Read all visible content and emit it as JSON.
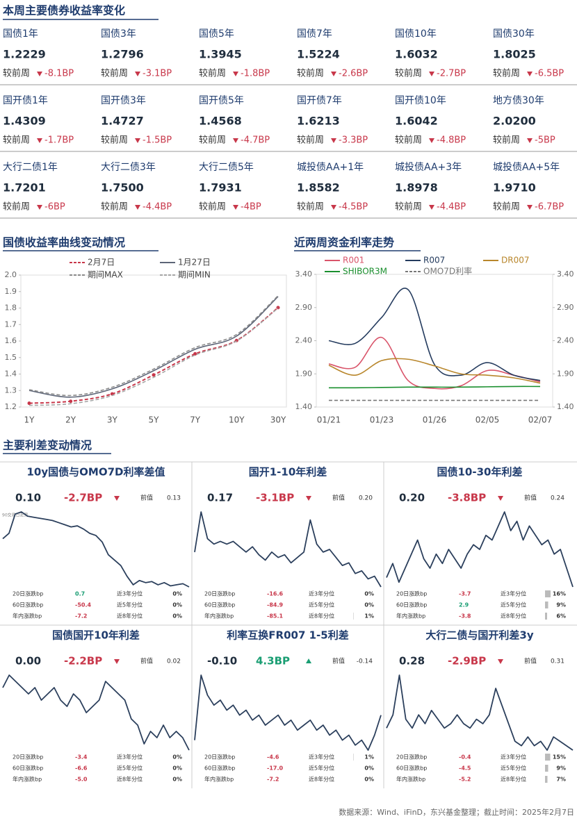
{
  "title": "本周主要债券收益率变化",
  "compare_label": "较前周",
  "bonds": [
    [
      {
        "name": "国债1年",
        "value": "1.2229",
        "change": "-8.1BP"
      },
      {
        "name": "国债3年",
        "value": "1.2796",
        "change": "-3.1BP"
      },
      {
        "name": "国债5年",
        "value": "1.3945",
        "change": "-1.8BP"
      },
      {
        "name": "国债7年",
        "value": "1.5224",
        "change": "-2.6BP"
      },
      {
        "name": "国债10年",
        "value": "1.6032",
        "change": "-2.7BP"
      },
      {
        "name": "国债30年",
        "value": "1.8025",
        "change": "-6.5BP"
      }
    ],
    [
      {
        "name": "国开债1年",
        "value": "1.4309",
        "change": "-1.7BP"
      },
      {
        "name": "国开债3年",
        "value": "1.4727",
        "change": "-1.5BP"
      },
      {
        "name": "国开债5年",
        "value": "1.4568",
        "change": "-4.7BP"
      },
      {
        "name": "国开债7年",
        "value": "1.6213",
        "change": "-3.3BP"
      },
      {
        "name": "国开债10年",
        "value": "1.6042",
        "change": "-4.8BP"
      },
      {
        "name": "地方债30年",
        "value": "2.0200",
        "change": "-5BP"
      }
    ],
    [
      {
        "name": "大行二债1年",
        "value": "1.7201",
        "change": "-6BP"
      },
      {
        "name": "大行二债3年",
        "value": "1.7500",
        "change": "-4.4BP"
      },
      {
        "name": "大行二债5年",
        "value": "1.7931",
        "change": "-4BP"
      },
      {
        "name": "城投债AA+1年",
        "value": "1.8582",
        "change": "-4.5BP"
      },
      {
        "name": "城投债AA+3年",
        "value": "1.8978",
        "change": "-4.4BP"
      },
      {
        "name": "城投债AA+5年",
        "value": "1.9710",
        "change": "-6.7BP"
      }
    ]
  ],
  "section_spread": "主要利差变动情况",
  "footer": "数据来源：Wind、iFinD，东兴基金整理；截止时间：2025年2月7日",
  "chart_data": [
    {
      "type": "line",
      "title": "国债收益率曲线变动情况",
      "categories": [
        "1Y",
        "2Y",
        "3Y",
        "5Y",
        "7Y",
        "10Y",
        "30Y"
      ],
      "series": [
        {
          "name": "2月7日",
          "color": "#c8374a",
          "dash": true,
          "markers": true,
          "values": [
            1.2229,
            1.235,
            1.2796,
            1.3945,
            1.5224,
            1.6032,
            1.8025
          ]
        },
        {
          "name": "1月27日",
          "color": "#5d6577",
          "dash": false,
          "markers": false,
          "values": [
            1.3,
            1.26,
            1.31,
            1.42,
            1.55,
            1.63,
            1.87
          ]
        },
        {
          "name": "期间MAX",
          "color": "#8a8a8a",
          "dash": true,
          "markers": false,
          "values": [
            1.305,
            1.27,
            1.32,
            1.43,
            1.56,
            1.64,
            1.875
          ]
        },
        {
          "name": "期间MIN",
          "color": "#a5a5a5",
          "dash": true,
          "markers": false,
          "values": [
            1.21,
            1.22,
            1.27,
            1.38,
            1.515,
            1.6,
            1.8
          ]
        }
      ],
      "ylim": [
        1.2,
        2.0
      ],
      "yticks": [
        1.2,
        1.3,
        1.4,
        1.5,
        1.6,
        1.7,
        1.8,
        1.9,
        {
          "value": 2,
          "label": "2.0"
        }
      ]
    },
    {
      "type": "line",
      "title": "近两周资金利率走势",
      "categories": [
        "01/21",
        null,
        "01/23",
        null,
        "01/26",
        null,
        "02/05",
        null,
        "02/07"
      ],
      "series": [
        {
          "name": "R001",
          "color": "#d9546a",
          "dash": false,
          "values": [
            2.05,
            2.0,
            2.45,
            1.8,
            1.68,
            1.72,
            1.95,
            1.88,
            1.78
          ]
        },
        {
          "name": "R007",
          "color": "#243b5e",
          "dash": false,
          "values": [
            2.4,
            2.36,
            2.75,
            3.17,
            2.04,
            1.88,
            2.07,
            1.88,
            1.8
          ]
        },
        {
          "name": "DR007",
          "color": "#b8862b",
          "dash": false,
          "values": [
            2.03,
            1.88,
            2.1,
            2.12,
            2.02,
            1.9,
            1.88,
            1.84,
            1.76
          ]
        },
        {
          "name": "SHIBOR3M",
          "color": "#1a8f2e",
          "dash": false,
          "values": [
            1.69,
            1.69,
            1.695,
            1.7,
            1.7,
            1.7,
            1.705,
            1.71,
            1.71
          ]
        },
        {
          "name": "OMO7D利率",
          "color": "#777777",
          "dash": true,
          "values": [
            1.5,
            1.5,
            1.5,
            1.5,
            1.5,
            1.5,
            1.5,
            1.5,
            1.5
          ]
        }
      ],
      "ylim": [
        1.4,
        3.4
      ],
      "yticks": [
        {
          "value": 1.4,
          "label": "1.40"
        },
        {
          "value": 1.9,
          "label": "1.90"
        },
        {
          "value": 2.4,
          "label": "2.40"
        },
        {
          "value": 2.9,
          "label": "2.90"
        },
        {
          "value": 3.4,
          "label": "3.40"
        }
      ],
      "y2lim": [
        1.4,
        3.4
      ],
      "y2ticks": [
        {
          "value": 1.4,
          "label": "1.40"
        },
        {
          "value": 1.9,
          "label": "1.90"
        },
        {
          "value": 2.4,
          "label": "2.40"
        },
        {
          "value": 2.9,
          "label": "2.90"
        },
        {
          "value": 3.4,
          "label": "3.40"
        }
      ]
    },
    {
      "type": "spark",
      "title": "10y国债与OMO7D利率差值",
      "note": "90交易日走势",
      "current": "0.10",
      "change": "-2.7BP",
      "arrow": "down",
      "prev_label": "前值",
      "prev": "0.13",
      "color": "#2b3f5c",
      "values": [
        0.55,
        0.6,
        0.78,
        0.8,
        0.76,
        0.75,
        0.74,
        0.73,
        0.72,
        0.7,
        0.68,
        0.66,
        0.67,
        0.64,
        0.6,
        0.58,
        0.52,
        0.4,
        0.35,
        0.3,
        0.2,
        0.12,
        0.16,
        0.14,
        0.15,
        0.12,
        0.14,
        0.11,
        0.12,
        0.13,
        0.1
      ],
      "stats": [
        {
          "label": "20日涨跌bp",
          "value": "0.7",
          "pct_label": "近3年分位",
          "pct": 0,
          "pct_text": "0%"
        },
        {
          "label": "60日涨跌bp",
          "value": "-50.4",
          "pct_label": "近5年分位",
          "pct": 0,
          "pct_text": "0%"
        },
        {
          "label": "年内涨跌bp",
          "value": "-7.2",
          "pct_label": "近8年分位",
          "pct": 0,
          "pct_text": "0%"
        }
      ]
    },
    {
      "type": "spark",
      "title": "国开1-10年利差",
      "current": "0.17",
      "change": "-3.1BP",
      "arrow": "down",
      "prev_label": "前值",
      "prev": "0.20",
      "color": "#2b3f5c",
      "values": [
        0.3,
        0.45,
        0.35,
        0.33,
        0.34,
        0.33,
        0.34,
        0.32,
        0.3,
        0.32,
        0.29,
        0.27,
        0.3,
        0.28,
        0.29,
        0.26,
        0.28,
        0.3,
        0.42,
        0.33,
        0.3,
        0.31,
        0.28,
        0.25,
        0.26,
        0.22,
        0.23,
        0.2,
        0.21,
        0.17
      ],
      "stats": [
        {
          "label": "20日涨跌bp",
          "value": "-16.6",
          "pct_label": "近3年分位",
          "pct": 0,
          "pct_text": "0%"
        },
        {
          "label": "60日涨跌bp",
          "value": "-84.9",
          "pct_label": "近5年分位",
          "pct": 0,
          "pct_text": "0%"
        },
        {
          "label": "年内涨跌bp",
          "value": "-85.1",
          "pct_label": "近8年分位",
          "pct": 1,
          "pct_text": "1%"
        }
      ]
    },
    {
      "type": "spark",
      "title": "国债10-30年利差",
      "current": "0.20",
      "change": "-3.8BP",
      "arrow": "down",
      "prev_label": "前值",
      "prev": "0.24",
      "color": "#2b3f5c",
      "values": [
        0.22,
        0.25,
        0.21,
        0.24,
        0.27,
        0.3,
        0.26,
        0.24,
        0.27,
        0.25,
        0.28,
        0.26,
        0.24,
        0.27,
        0.29,
        0.28,
        0.31,
        0.3,
        0.33,
        0.36,
        0.32,
        0.34,
        0.3,
        0.33,
        0.31,
        0.29,
        0.3,
        0.27,
        0.28,
        0.24,
        0.2
      ],
      "stats": [
        {
          "label": "20日涨跌bp",
          "value": "-3.7",
          "pct_label": "近3年分位",
          "pct": 16,
          "pct_text": "16%"
        },
        {
          "label": "60日涨跌bp",
          "value": "2.9",
          "pct_label": "近5年分位",
          "pct": 9,
          "pct_text": "9%"
        },
        {
          "label": "年内涨跌bp",
          "value": "-3.8",
          "pct_label": "近8年分位",
          "pct": 6,
          "pct_text": "6%"
        }
      ]
    },
    {
      "type": "spark",
      "title": "国债国开10年利差",
      "current": "0.00",
      "change": "-2.2BP",
      "arrow": "down",
      "prev_label": "前值",
      "prev": "0.02",
      "color": "#2b3f5c",
      "values": [
        0.1,
        0.12,
        0.11,
        0.1,
        0.09,
        0.1,
        0.08,
        0.09,
        0.1,
        0.08,
        0.07,
        0.09,
        0.08,
        0.06,
        0.07,
        0.08,
        0.11,
        0.1,
        0.09,
        0.08,
        0.05,
        0.04,
        0.01,
        0.03,
        0.02,
        0.04,
        0.02,
        0.03,
        0.02,
        0.0
      ],
      "stats": [
        {
          "label": "20日涨跌bp",
          "value": "-3.4",
          "pct_label": "近3年分位",
          "pct": 0,
          "pct_text": "0%"
        },
        {
          "label": "60日涨跌bp",
          "value": "-6.6",
          "pct_label": "近5年分位",
          "pct": 0,
          "pct_text": "0%"
        },
        {
          "label": "年内涨跌bp",
          "value": "-5.0",
          "pct_label": "近8年分位",
          "pct": 0,
          "pct_text": "0%"
        }
      ]
    },
    {
      "type": "spark",
      "title": "利率互换FR007 1-5利差",
      "current": "-0.10",
      "change": "4.3BP",
      "arrow": "up",
      "prev_label": "前值",
      "prev": "-0.14",
      "color": "#2b3f5c",
      "values": [
        -0.15,
        -0.02,
        -0.06,
        -0.08,
        -0.07,
        -0.09,
        -0.08,
        -0.1,
        -0.09,
        -0.11,
        -0.1,
        -0.12,
        -0.11,
        -0.1,
        -0.12,
        -0.11,
        -0.13,
        -0.12,
        -0.11,
        -0.13,
        -0.12,
        -0.14,
        -0.13,
        -0.15,
        -0.14,
        -0.16,
        -0.15,
        -0.17,
        -0.14,
        -0.1
      ],
      "stats": [
        {
          "label": "20日涨跌bp",
          "value": "-4.6",
          "pct_label": "近3年分位",
          "pct": 1,
          "pct_text": "1%"
        },
        {
          "label": "60日涨跌bp",
          "value": "-17.0",
          "pct_label": "近5年分位",
          "pct": 0,
          "pct_text": "0%"
        },
        {
          "label": "年内涨跌bp",
          "value": "-7.2",
          "pct_label": "近8年分位",
          "pct": 0,
          "pct_text": "0%"
        }
      ]
    },
    {
      "type": "spark",
      "title": "大行二债与国开利差3y",
      "current": "0.28",
      "change": "-2.9BP",
      "arrow": "down",
      "prev_label": "前值",
      "prev": "0.31",
      "color": "#2b3f5c",
      "values": [
        0.33,
        0.36,
        0.45,
        0.35,
        0.33,
        0.36,
        0.34,
        0.37,
        0.35,
        0.33,
        0.34,
        0.36,
        0.34,
        0.33,
        0.35,
        0.34,
        0.36,
        0.42,
        0.38,
        0.34,
        0.3,
        0.29,
        0.31,
        0.29,
        0.3,
        0.28,
        0.31,
        0.3,
        0.29,
        0.28
      ],
      "stats": [
        {
          "label": "20日涨跌bp",
          "value": "-0.4",
          "pct_label": "近3年分位",
          "pct": 15,
          "pct_text": "15%"
        },
        {
          "label": "60日涨跌bp",
          "value": "-4.5",
          "pct_label": "近5年分位",
          "pct": 9,
          "pct_text": "9%"
        },
        {
          "label": "年内涨跌bp",
          "value": "-5.2",
          "pct_label": "近8年分位",
          "pct": 7,
          "pct_text": "7%"
        }
      ]
    }
  ]
}
